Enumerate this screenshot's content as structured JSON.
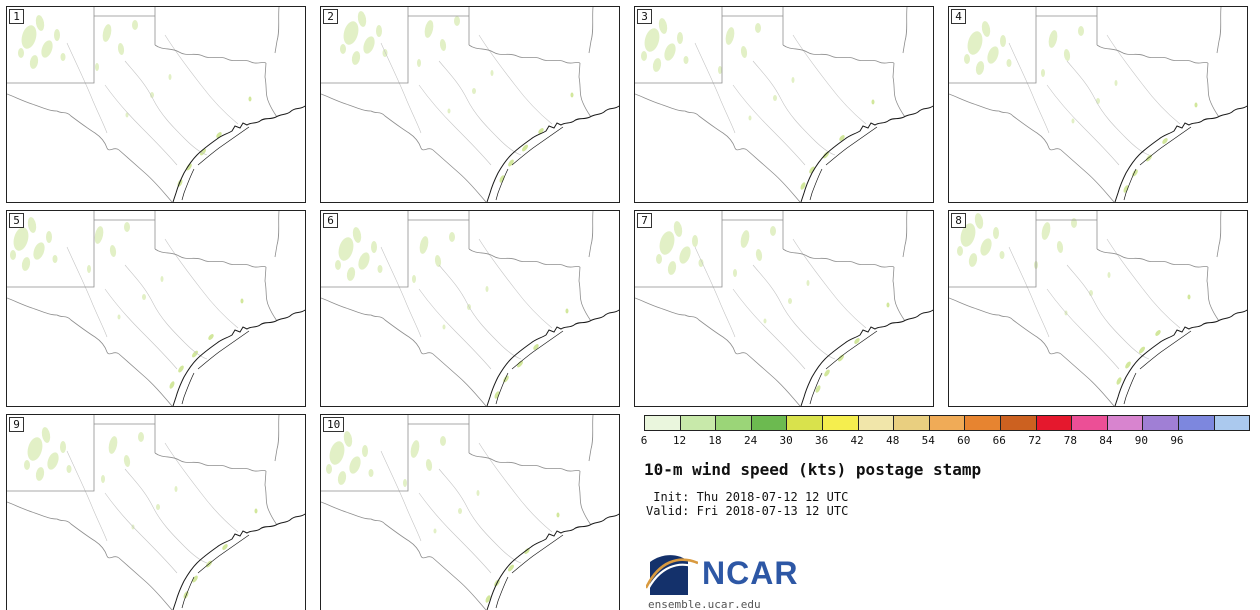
{
  "panels": [
    {
      "label": "1"
    },
    {
      "label": "2"
    },
    {
      "label": "3"
    },
    {
      "label": "4"
    },
    {
      "label": "5"
    },
    {
      "label": "6"
    },
    {
      "label": "7"
    },
    {
      "label": "8"
    },
    {
      "label": "9"
    },
    {
      "label": "10"
    }
  ],
  "legend": {
    "tick_labels": [
      "6",
      "12",
      "18",
      "24",
      "30",
      "36",
      "42",
      "48",
      "54",
      "60",
      "66",
      "72",
      "78",
      "84",
      "90",
      "96"
    ],
    "colors": [
      "#eaf6dd",
      "#c8e9aa",
      "#9bd578",
      "#6cba50",
      "#d9e24c",
      "#f5ee4e",
      "#f1e6aa",
      "#e9cf80",
      "#f0ab57",
      "#e78430",
      "#cc6120",
      "#e5182d",
      "#ec4f96",
      "#d884cf",
      "#a07fd5",
      "#7d87de",
      "#abc9ee"
    ],
    "title": "10-m wind speed (kts) postage stamp",
    "init_line": " Init: Thu 2018-07-12 12 UTC",
    "valid_line": "Valid: Fri 2018-07-13 12 UTC"
  },
  "footer": {
    "logo_text": "NCAR",
    "site": "ensemble.ucar.edu"
  },
  "map_colors": {
    "state_border": "#8e8e8e",
    "coastline": "#1a1a1a",
    "river": "#c4c4c4",
    "wind_fill_light": "#e2f0c6",
    "wind_fill_dark": "#d2e79c"
  }
}
